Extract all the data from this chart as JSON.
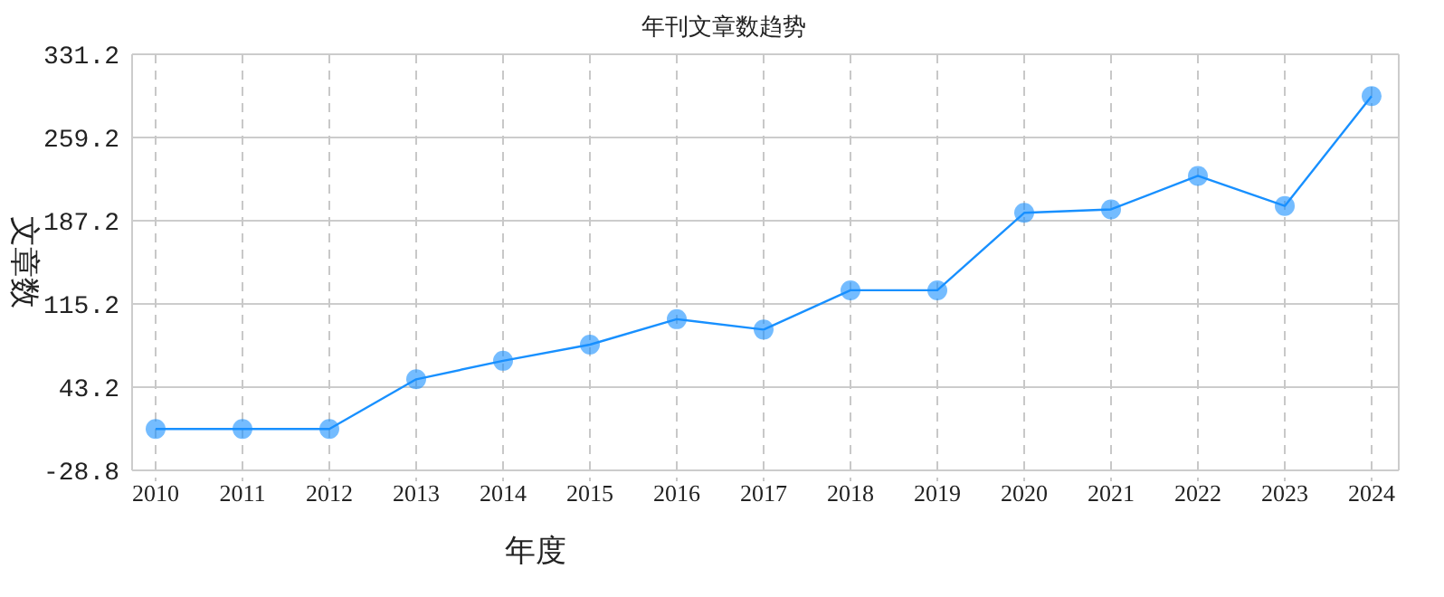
{
  "chart_data": {
    "type": "line",
    "title": "年刊文章数趋势",
    "xlabel": "年度",
    "ylabel": "文章数",
    "categories": [
      "2010",
      "2011",
      "2012",
      "2013",
      "2014",
      "2015",
      "2016",
      "2017",
      "2018",
      "2019",
      "2020",
      "2021",
      "2022",
      "2023",
      "2024"
    ],
    "series": [
      {
        "color": "#1890ff",
        "values": [
          7,
          7,
          7,
          50,
          66,
          80,
          102,
          93,
          127,
          127,
          194,
          197,
          226,
          200,
          295
        ]
      }
    ],
    "ylim": [
      -28.8,
      331.2
    ],
    "yticks": [
      {
        "value": -28.8,
        "label": "-28.8"
      },
      {
        "value": 43.2,
        "label": "43.2"
      },
      {
        "value": 115.2,
        "label": "115.2"
      },
      {
        "value": 187.2,
        "label": "187.2"
      },
      {
        "value": 259.2,
        "label": "259.2"
      },
      {
        "value": 331.2,
        "label": "331.2"
      }
    ],
    "grid": true,
    "marker": "circle",
    "line_style": "solid"
  }
}
